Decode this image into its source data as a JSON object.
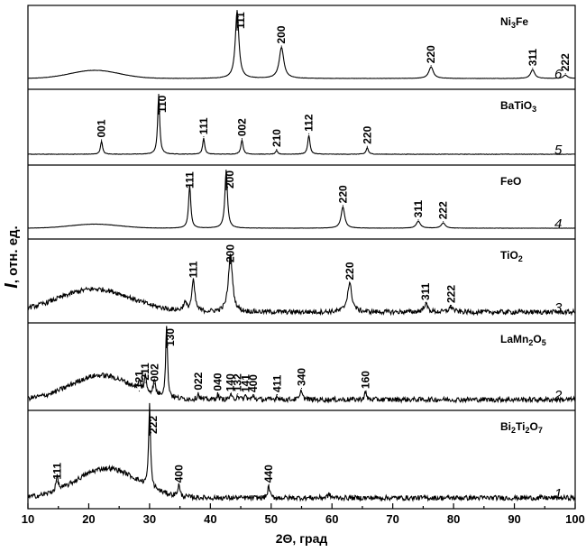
{
  "chart_data": {
    "type": "line",
    "xlabel": "2Θ, град",
    "ylabel_symbol": "I",
    "ylabel_text": ", отн. ед.",
    "xlim": [
      10,
      100
    ],
    "xticks": [
      10,
      20,
      30,
      40,
      50,
      60,
      70,
      80,
      90,
      100
    ],
    "series": [
      {
        "name": "Ni3Fe",
        "name_parts": [
          [
            "Ni",
            ""
          ],
          [
            "3",
            "sub"
          ],
          [
            "Fe",
            ""
          ]
        ],
        "number": "6",
        "noise": 0.002,
        "hump": {
          "center": 21,
          "width": 4,
          "height": 0.12
        },
        "peaks": [
          {
            "x": 44.4,
            "h": 1.0,
            "w": 0.35,
            "label": "111"
          },
          {
            "x": 51.7,
            "h": 0.46,
            "w": 0.45,
            "label": "200"
          },
          {
            "x": 76.3,
            "h": 0.17,
            "w": 0.45,
            "label": "220"
          },
          {
            "x": 93.0,
            "h": 0.13,
            "w": 0.4,
            "label": "311"
          },
          {
            "x": 98.4,
            "h": 0.05,
            "w": 0.4,
            "label": "222"
          }
        ]
      },
      {
        "name": "BaTiO3",
        "name_parts": [
          [
            "BaTiO",
            ""
          ],
          [
            "3",
            "sub"
          ]
        ],
        "number": "5",
        "noise": 0.004,
        "hump": null,
        "peaks": [
          {
            "x": 22.1,
            "h": 0.22,
            "w": 0.2,
            "label": "001"
          },
          {
            "x": 31.5,
            "h": 1.0,
            "w": 0.2,
            "label": "110"
          },
          {
            "x": 38.9,
            "h": 0.27,
            "w": 0.2,
            "label": "111"
          },
          {
            "x": 45.2,
            "h": 0.24,
            "w": 0.22,
            "label": "002"
          },
          {
            "x": 50.9,
            "h": 0.06,
            "w": 0.2,
            "label": "210"
          },
          {
            "x": 56.2,
            "h": 0.32,
            "w": 0.22,
            "label": "112"
          },
          {
            "x": 65.8,
            "h": 0.11,
            "w": 0.22,
            "label": "220"
          }
        ]
      },
      {
        "name": "FeO",
        "name_parts": [
          [
            "FeO",
            ""
          ]
        ],
        "number": "4",
        "noise": 0.002,
        "hump": {
          "center": 21,
          "width": 4,
          "height": 0.07
        },
        "peaks": [
          {
            "x": 36.6,
            "h": 0.74,
            "w": 0.22,
            "label": "111"
          },
          {
            "x": 42.6,
            "h": 1.0,
            "w": 0.25,
            "label": "200"
          },
          {
            "x": 61.8,
            "h": 0.37,
            "w": 0.35,
            "label": "220"
          },
          {
            "x": 74.2,
            "h": 0.12,
            "w": 0.4,
            "label": "311"
          },
          {
            "x": 78.3,
            "h": 0.09,
            "w": 0.4,
            "label": "222"
          }
        ]
      },
      {
        "name": "TiO2",
        "name_parts": [
          [
            "TiO",
            ""
          ],
          [
            "2",
            "sub"
          ]
        ],
        "number": "3",
        "noise": 0.035,
        "hump": {
          "center": 21,
          "width": 6,
          "height": 0.34
        },
        "peaks": [
          {
            "x": 35.8,
            "h": 0.12,
            "w": 0.3,
            "label": ""
          },
          {
            "x": 37.2,
            "h": 0.45,
            "w": 0.3,
            "label": "111"
          },
          {
            "x": 43.3,
            "h": 0.85,
            "w": 0.4,
            "label": "200"
          },
          {
            "x": 62.9,
            "h": 0.42,
            "w": 0.45,
            "label": "220"
          },
          {
            "x": 75.4,
            "h": 0.12,
            "w": 0.4,
            "label": "311"
          },
          {
            "x": 79.6,
            "h": 0.08,
            "w": 0.4,
            "label": "222"
          }
        ]
      },
      {
        "name": "LaMn2O5",
        "name_parts": [
          [
            "LaMn",
            ""
          ],
          [
            "2",
            "sub"
          ],
          [
            "O",
            ""
          ],
          [
            "5",
            "sub"
          ]
        ],
        "number": "2",
        "noise": 0.035,
        "hump": {
          "center": 22,
          "width": 5,
          "height": 0.34
        },
        "peaks": [
          {
            "x": 28.3,
            "h": 0.1,
            "w": 0.2,
            "label": "121"
          },
          {
            "x": 29.3,
            "h": 0.22,
            "w": 0.2,
            "label": "211"
          },
          {
            "x": 30.8,
            "h": 0.2,
            "w": 0.2,
            "label": "002"
          },
          {
            "x": 32.8,
            "h": 1.0,
            "w": 0.18,
            "label": "130"
          },
          {
            "x": 38.0,
            "h": 0.08,
            "w": 0.2,
            "label": "022"
          },
          {
            "x": 41.2,
            "h": 0.07,
            "w": 0.2,
            "label": "040"
          },
          {
            "x": 43.3,
            "h": 0.06,
            "w": 0.2,
            "label": "140"
          },
          {
            "x": 44.5,
            "h": 0.06,
            "w": 0.2,
            "label": "132"
          },
          {
            "x": 45.8,
            "h": 0.05,
            "w": 0.2,
            "label": "141"
          },
          {
            "x": 47.1,
            "h": 0.05,
            "w": 0.2,
            "label": "400"
          },
          {
            "x": 51.0,
            "h": 0.05,
            "w": 0.2,
            "label": "411"
          },
          {
            "x": 55.0,
            "h": 0.14,
            "w": 0.2,
            "label": "340"
          },
          {
            "x": 65.5,
            "h": 0.1,
            "w": 0.2,
            "label": "160"
          }
        ]
      },
      {
        "name": "Bi2Ti2O7",
        "name_parts": [
          [
            "Bi",
            ""
          ],
          [
            "2",
            "sub"
          ],
          [
            "Ti",
            ""
          ],
          [
            "2",
            "sub"
          ],
          [
            "O",
            ""
          ],
          [
            "7",
            "sub"
          ]
        ],
        "number": "1",
        "noise": 0.03,
        "hump": {
          "center": 23,
          "width": 5,
          "height": 0.36
        },
        "peaks": [
          {
            "x": 14.8,
            "h": 0.18,
            "w": 0.2,
            "label": "111"
          },
          {
            "x": 30.0,
            "h": 1.0,
            "w": 0.18,
            "label": "222"
          },
          {
            "x": 34.8,
            "h": 0.14,
            "w": 0.2,
            "label": "400"
          },
          {
            "x": 49.6,
            "h": 0.14,
            "w": 0.2,
            "label": "440"
          },
          {
            "x": 59.5,
            "h": 0.04,
            "w": 0.3,
            "label": ""
          }
        ]
      }
    ]
  }
}
